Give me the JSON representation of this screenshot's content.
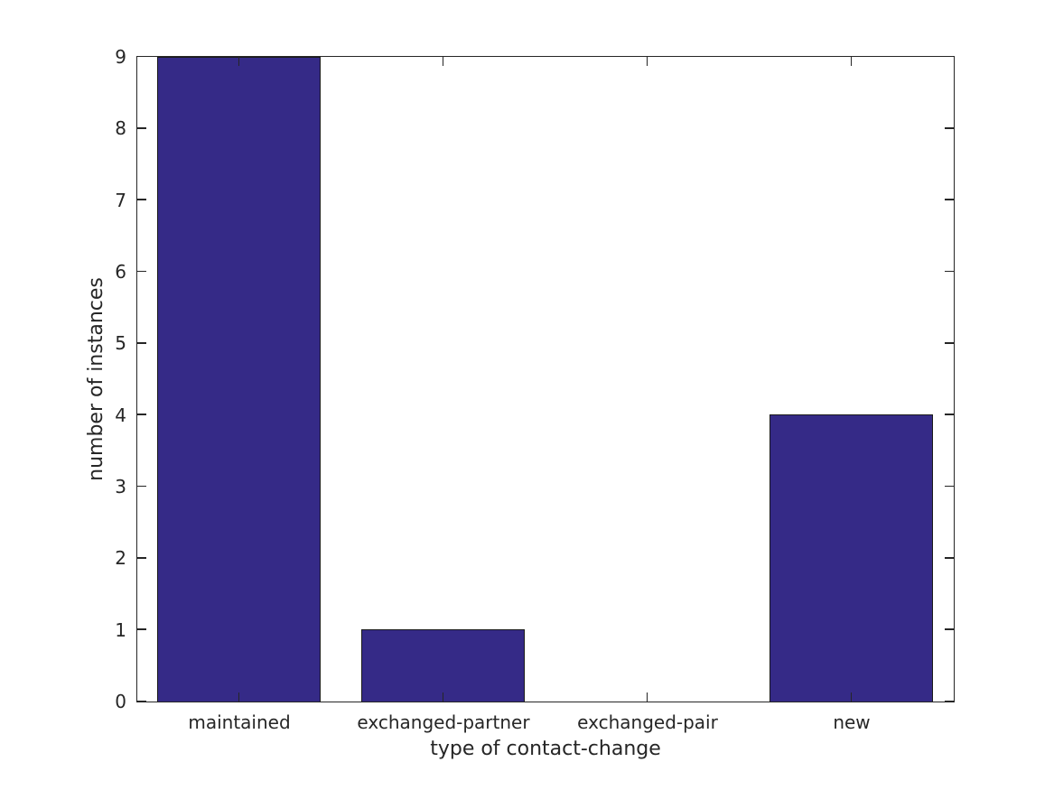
{
  "chart_data": {
    "type": "bar",
    "title": "",
    "categories": [
      "maintained",
      "exchanged-partner",
      "exchanged-pair",
      "new"
    ],
    "values": [
      9,
      1,
      0,
      4
    ],
    "xlabel": "type of contact-change",
    "ylabel": "number of instances",
    "ylim": [
      0,
      9
    ],
    "yticks": [
      0,
      1,
      2,
      3,
      4,
      5,
      6,
      7,
      8,
      9
    ],
    "bar_width_fraction": 0.8,
    "grid": false,
    "legend": null,
    "tick_direction": "in",
    "box": true,
    "colors": {
      "bar_fill": "#352a87",
      "bar_edge": "#1a1a1a",
      "axis": "#262626",
      "text": "#262626",
      "background": "#ffffff"
    }
  }
}
